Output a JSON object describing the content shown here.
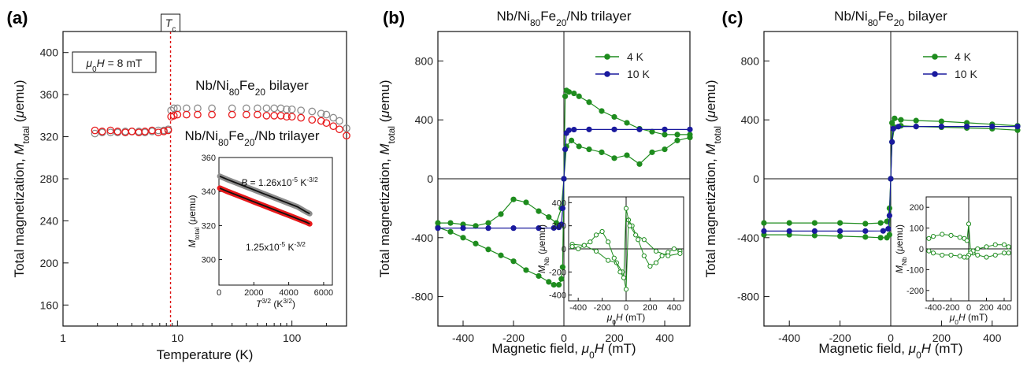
{
  "chart_data": [
    {
      "panel": "(a)",
      "type": "scatter",
      "xlabel": "Temperature (K)",
      "ylabel": "Total magnetization, M_total (μemu)",
      "xscale": "log",
      "xlim": [
        1,
        300
      ],
      "ylim": [
        140,
        420
      ],
      "xticks": [
        1,
        10,
        100
      ],
      "yticks": [
        160,
        200,
        240,
        280,
        320,
        360,
        400
      ],
      "field_label": "μ0H =  8 mT",
      "tc_label": "Tc",
      "tc_value": 8.7,
      "series": [
        {
          "name": "Nb/Ni80Fe20 bilayer",
          "color": "#8c8c8c",
          "x": [
            1.9,
            2.2,
            2.6,
            3.0,
            3.5,
            4.0,
            4.6,
            5.2,
            6.0,
            6.8,
            7.6,
            8.3,
            8.8,
            9.3,
            10,
            12,
            15,
            20,
            30,
            40,
            50,
            60,
            70,
            80,
            90,
            100,
            120,
            150,
            180,
            200,
            230,
            260,
            300
          ],
          "y": [
            323,
            324,
            324,
            324,
            325,
            325,
            325,
            324,
            325,
            326,
            326,
            327,
            345,
            347,
            347,
            347,
            347,
            347,
            347,
            347,
            347,
            347,
            347,
            347,
            346,
            346,
            345,
            344,
            342,
            341,
            338,
            335,
            328
          ]
        },
        {
          "name": "Nb/Ni80Fe20/Nb trilayer",
          "color": "#e8191b",
          "x": [
            1.9,
            2.2,
            2.6,
            3.0,
            3.5,
            4.0,
            4.6,
            5.2,
            6.0,
            6.8,
            7.6,
            8.3,
            8.8,
            9.3,
            10,
            12,
            15,
            20,
            30,
            40,
            50,
            60,
            70,
            80,
            90,
            100,
            120,
            150,
            180,
            200,
            230,
            260,
            300
          ],
          "y": [
            326,
            325,
            326,
            325,
            324,
            325,
            324,
            325,
            326,
            324,
            325,
            326,
            339,
            340,
            341,
            341,
            341,
            341,
            341,
            341,
            341,
            340,
            340,
            340,
            339,
            339,
            338,
            336,
            335,
            333,
            330,
            327,
            321
          ]
        }
      ],
      "inset": {
        "xlabel": "T^3/2 (K^3/2)",
        "ylabel": "M_total (μemu)",
        "xlim": [
          0,
          6500
        ],
        "ylim": [
          285,
          360
        ],
        "xticks": [
          0,
          2000,
          4000,
          6000
        ],
        "yticks": [
          300,
          320,
          340,
          360
        ],
        "annotations": [
          "B = 1.26x10-5 K-3/2",
          "1.25x10-5 K-3/2"
        ],
        "series": [
          {
            "color": "#8c8c8c",
            "x": [
              50,
              500,
              1000,
              1500,
              2000,
              2500,
              3000,
              3500,
              4000,
              4500,
              5000,
              5200
            ],
            "y": [
              349,
              347,
              345,
              343,
              341,
              339,
              337,
              335,
              333,
              331,
              328,
              327
            ]
          },
          {
            "color": "#e8191b",
            "x": [
              50,
              500,
              1000,
              1500,
              2000,
              2500,
              3000,
              3500,
              4000,
              4500,
              5000,
              5200
            ],
            "y": [
              342,
              340,
              338,
              336,
              334,
              332,
              330,
              328,
              326,
              324,
              322,
              321
            ]
          }
        ]
      }
    },
    {
      "panel": "(b)",
      "type": "line",
      "title": "Nb/Ni80Fe20/Nb trilayer",
      "xlabel": "Magnetic field, μ0H (mT)",
      "ylabel": "Total magnetization, M_total (μemu)",
      "xlim": [
        -500,
        500
      ],
      "ylim": [
        -1000,
        1000
      ],
      "xticks": [
        -400,
        -200,
        0,
        200,
        400
      ],
      "yticks": [
        -800,
        -400,
        0,
        400,
        800
      ],
      "legend": [
        "4 K",
        "10 K"
      ],
      "series": [
        {
          "name": "4 K",
          "color": "#1e8c1e",
          "x": [
            -500,
            -450,
            -400,
            -350,
            -300,
            -250,
            -200,
            -150,
            -100,
            -60,
            -30,
            -10,
            0,
            5,
            10,
            20,
            40,
            60,
            100,
            150,
            200,
            250,
            300,
            350,
            400,
            450,
            500
          ],
          "y": [
            -300,
            -300,
            -310,
            -320,
            -300,
            -240,
            -140,
            -160,
            -220,
            -260,
            -300,
            -200,
            0,
            560,
            600,
            590,
            580,
            560,
            520,
            460,
            420,
            380,
            340,
            320,
            300,
            300,
            300
          ],
          "x2": [
            500,
            450,
            400,
            350,
            300,
            250,
            200,
            150,
            100,
            60,
            30,
            10,
            0,
            -5,
            -10,
            -20,
            -40,
            -60,
            -100,
            -150,
            -200,
            -250,
            -300,
            -350,
            -400,
            -450,
            -500
          ],
          "y2": [
            280,
            260,
            200,
            180,
            100,
            160,
            140,
            180,
            200,
            220,
            260,
            220,
            0,
            -600,
            -680,
            -720,
            -720,
            -700,
            -660,
            -620,
            -560,
            -520,
            -480,
            -440,
            -400,
            -360,
            -330
          ]
        },
        {
          "name": "10 K",
          "color": "#1a1a9e",
          "x": [
            -500,
            -400,
            -300,
            -200,
            -100,
            -40,
            -20,
            -10,
            -5,
            0,
            5,
            10,
            20,
            40,
            100,
            200,
            300,
            400,
            500
          ],
          "y": [
            -335,
            -335,
            -335,
            -335,
            -335,
            -334,
            -330,
            -310,
            -200,
            0,
            200,
            310,
            330,
            334,
            335,
            335,
            335,
            335,
            335
          ]
        }
      ],
      "inset": {
        "xlabel": "μ0H (mT)",
        "ylabel": "M_Nb (μemu)",
        "xlim": [
          -480,
          480
        ],
        "ylim": [
          -450,
          450
        ],
        "xticks": [
          -400,
          -200,
          0,
          200,
          400
        ],
        "yticks": [
          -400,
          -200,
          0,
          200,
          400
        ],
        "series": [
          {
            "color": "#1e8c1e",
            "x": [
              -450,
              -350,
              -250,
              -150,
              -80,
              -30,
              0,
              20,
              50,
              100,
              150,
              200,
              250,
              300,
              350,
              400,
              450
            ],
            "y": [
              40,
              30,
              -20,
              -100,
              -120,
              -200,
              -350,
              250,
              200,
              80,
              -60,
              -150,
              -120,
              -60,
              -30,
              0,
              -20
            ],
            "x2": [
              450,
              350,
              250,
              150,
              80,
              30,
              0,
              -20,
              -50,
              -100,
              -150,
              -200,
              -250,
              -300,
              -350,
              -400,
              -450
            ],
            "y2": [
              -40,
              -60,
              -20,
              80,
              120,
              200,
              350,
              -250,
              -200,
              -80,
              60,
              150,
              120,
              60,
              30,
              0,
              20
            ]
          }
        ]
      }
    },
    {
      "panel": "(c)",
      "type": "line",
      "title": "Nb/Ni80Fe20 bilayer",
      "xlabel": "Magnetic field, μ0H (mT)",
      "ylabel": "Total magnetization, M_total (μemu)",
      "xlim": [
        -500,
        500
      ],
      "ylim": [
        -1000,
        1000
      ],
      "xticks": [
        -400,
        -200,
        0,
        200,
        400
      ],
      "yticks": [
        -800,
        -400,
        0,
        400,
        800
      ],
      "legend": [
        "4 K",
        "10 K"
      ],
      "series": [
        {
          "name": "4 K",
          "color": "#1e8c1e",
          "x": [
            -500,
            -400,
            -300,
            -200,
            -100,
            -40,
            -15,
            -5,
            0,
            5,
            15,
            40,
            100,
            200,
            300,
            400,
            500
          ],
          "y": [
            -300,
            -300,
            -300,
            -300,
            -305,
            -300,
            -290,
            -200,
            0,
            380,
            410,
            400,
            395,
            390,
            380,
            370,
            360
          ],
          "x2": [
            500,
            400,
            300,
            200,
            100,
            40,
            15,
            5,
            0,
            -5,
            -15,
            -40,
            -100,
            -200,
            -300,
            -400,
            -500
          ],
          "y2": [
            330,
            340,
            345,
            350,
            355,
            360,
            350,
            250,
            0,
            -380,
            -400,
            -400,
            -395,
            -390,
            -385,
            -380,
            -380
          ]
        },
        {
          "name": "10 K",
          "color": "#1a1a9e",
          "x": [
            -500,
            -400,
            -300,
            -200,
            -100,
            -30,
            -10,
            -5,
            0,
            5,
            10,
            30,
            100,
            200,
            300,
            400,
            500
          ],
          "y": [
            -355,
            -355,
            -355,
            -355,
            -355,
            -354,
            -340,
            -250,
            0,
            250,
            340,
            354,
            355,
            355,
            355,
            355,
            355
          ]
        }
      ],
      "inset": {
        "xlabel": "μ0H (mT)",
        "ylabel": "M_Nb (μemu)",
        "xlim": [
          -480,
          480
        ],
        "ylim": [
          -250,
          250
        ],
        "xticks": [
          -400,
          -200,
          0,
          200,
          400
        ],
        "yticks": [
          -200,
          -100,
          0,
          100,
          200
        ],
        "series": [
          {
            "color": "#1e8c1e",
            "x": [
              -450,
              -400,
              -300,
              -200,
              -100,
              -50,
              -20,
              0,
              20,
              50,
              100,
              200,
              300,
              400,
              450
            ],
            "y": [
              50,
              60,
              70,
              65,
              55,
              50,
              40,
              120,
              -10,
              -20,
              -30,
              -40,
              -30,
              -20,
              -20
            ],
            "x2": [
              450,
              400,
              300,
              200,
              100,
              50,
              20,
              0,
              -20,
              -50,
              -100,
              -200,
              -300,
              -400,
              -450
            ],
            "y2": [
              10,
              20,
              20,
              10,
              0,
              -10,
              -20,
              -30,
              -40,
              -40,
              -35,
              -30,
              -30,
              -20,
              -10
            ]
          }
        ]
      }
    }
  ]
}
